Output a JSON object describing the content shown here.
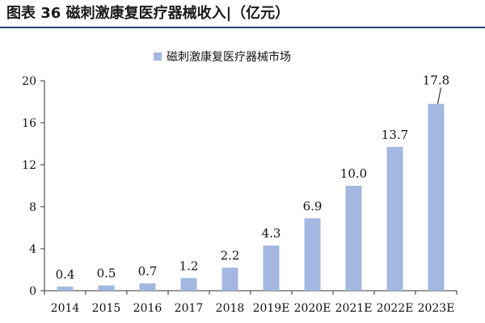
{
  "figure": {
    "title": "图表 36 磁刺激康复医疗器械收入|（亿元）"
  },
  "colors": {
    "bar": "#a4b7e1",
    "axis": "#333333",
    "title_rule": "#1f3f73"
  },
  "chart_data": {
    "type": "bar",
    "title": "",
    "xlabel": "",
    "ylabel": "",
    "ylim": [
      0,
      20
    ],
    "yticks": [
      0,
      4,
      8,
      12,
      16,
      20
    ],
    "grid": false,
    "legend_position": "top-center",
    "categories": [
      "2014",
      "2015",
      "2016",
      "2017",
      "2018",
      "2019E",
      "2020E",
      "2021E",
      "2022E",
      "2023E"
    ],
    "series": [
      {
        "name": "磁刺激康复医疗器械市场",
        "values": [
          0.4,
          0.5,
          0.7,
          1.2,
          2.2,
          4.3,
          6.9,
          10.0,
          13.7,
          17.8
        ],
        "labels": [
          "0.4",
          "0.5",
          "0.7",
          "1.2",
          "2.2",
          "4.3",
          "6.9",
          "10.0",
          "13.7",
          "17.8"
        ]
      }
    ]
  }
}
